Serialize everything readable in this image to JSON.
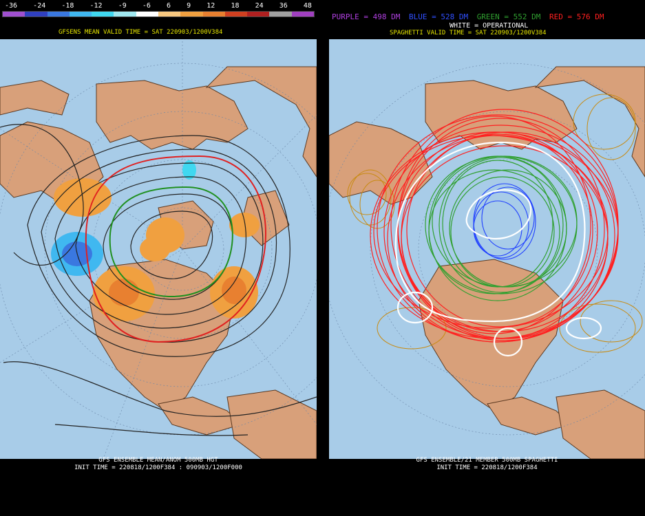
{
  "left": {
    "scale_labels": [
      "-36",
      "-24",
      "-18",
      "-12",
      "-9",
      "-6",
      "6",
      "9",
      "12",
      "18",
      "24",
      "36",
      "48"
    ],
    "scale_colors": [
      "#a050d0",
      "#3040c0",
      "#3a78e0",
      "#40b8f0",
      "#40d8f0",
      "#a0e8f0",
      "#ffffff",
      "#f8c880",
      "#f0a040",
      "#e88030",
      "#d04020",
      "#b02020",
      "#a0a0a0",
      "#a040c0"
    ],
    "title": "GFSENS MEAN VALID TIME = SAT 220903/1200V384",
    "bottom_line1": "GFS ENSEMBLE MEAN/ANOM 500MB HGT",
    "bottom_line2": "INIT TIME = 220818/1200F384 : 090903/1200F000"
  },
  "right": {
    "legend": [
      {
        "text": "PURPLE = 498 DM",
        "color": "#b040e0"
      },
      {
        "text": "BLUE = 528 DM",
        "color": "#3050ff"
      },
      {
        "text": "GREEN = 552 DM",
        "color": "#30a030"
      },
      {
        "text": "RED = 576 DM",
        "color": "#ff2020"
      }
    ],
    "white_label": "WHITE = OPERATIONAL",
    "title": "SPAGHETTI VALID TIME = SAT 220903/1200V384",
    "bottom_line1": "GFS ENSEMBLE/21 MEMBER 500MB SPAGHETTI",
    "bottom_line2": "INIT TIME = 220818/1200F384"
  },
  "colors": {
    "ocean": "#a8cce8",
    "land": "#d8a07a",
    "coast": "#5a3820"
  }
}
